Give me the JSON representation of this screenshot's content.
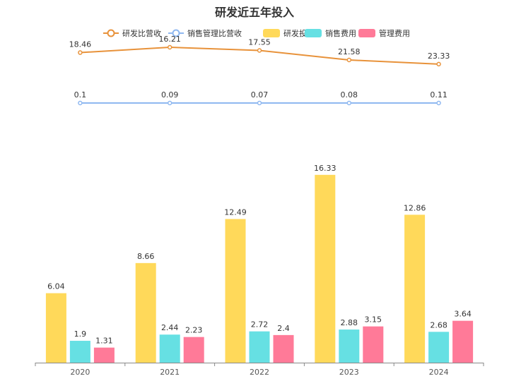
{
  "chart_data": {
    "type": "bar",
    "title": "研发近五年投入",
    "categories": [
      "2020",
      "2021",
      "2022",
      "2023",
      "2024"
    ],
    "series": [
      {
        "name": "研发投入",
        "kind": "bar",
        "color": "#FFD95A",
        "values": [
          6.04,
          8.66,
          12.49,
          16.33,
          12.86
        ]
      },
      {
        "name": "销售费用",
        "kind": "bar",
        "color": "#66E0E3",
        "values": [
          1.9,
          2.44,
          2.72,
          2.88,
          2.68
        ]
      },
      {
        "name": "管理费用",
        "kind": "bar",
        "color": "#FF7A98",
        "values": [
          1.31,
          2.23,
          2.4,
          3.15,
          3.64
        ]
      }
    ],
    "line_series": [
      {
        "name": "研发比营收",
        "kind": "line",
        "color": "#E8923A",
        "values": [
          18.46,
          16.21,
          17.55,
          21.58,
          23.33
        ]
      },
      {
        "name": "销售管理比营收",
        "kind": "line",
        "color": "#8FB8F0",
        "values": [
          0.1,
          0.09,
          0.07,
          0.08,
          0.11
        ]
      }
    ],
    "legend_order": [
      "研发比营收",
      "销售管理比营收",
      "研发投入",
      "销售费用",
      "管理费用"
    ],
    "legend_position": "top-center",
    "grid": false
  }
}
